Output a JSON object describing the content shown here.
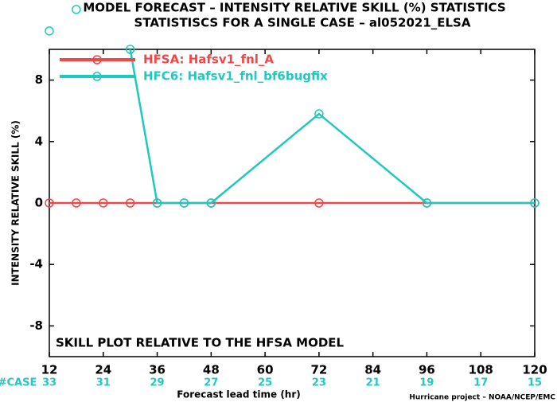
{
  "chart_data": {
    "type": "line",
    "title": "MODEL FORECAST – INTENSITY RELATIVE SKILL (%) STATISTICS",
    "subtitle": "STATISTISCS FOR A SINGLE CASE – al052021_ELSA",
    "x_label": "Forecast lead time (hr)",
    "y_label": "INTENSITY RELATIVE SKILL (%)",
    "annotation": "SKILL PLOT RELATIVE TO THE HFSA MODEL",
    "footer": "Hurricane project – NOAA/NCEP/EMC",
    "xlim": [
      12,
      120
    ],
    "xticks": [
      12,
      24,
      36,
      48,
      60,
      72,
      84,
      96,
      108,
      120
    ],
    "ylim": [
      -10,
      10
    ],
    "yticks": [
      -8,
      -4,
      0,
      4,
      8
    ],
    "cases": {
      "label": "#CASE",
      "values": [
        33,
        31,
        29,
        27,
        25,
        23,
        21,
        19,
        17,
        15
      ]
    },
    "legend": "upper left",
    "series": [
      {
        "name": "HFSA: Hafsv1_fnl_A",
        "color": "#f04848",
        "x": [
          12,
          18,
          24,
          30,
          36,
          42,
          48,
          72,
          96,
          120
        ],
        "values": [
          0,
          0,
          0,
          0,
          0,
          0,
          0,
          0,
          0,
          0
        ]
      },
      {
        "name": "HFC6: Hafsv1_fnl_bf6bugfix",
        "color": "#20c8c0",
        "x": [
          12,
          18,
          30,
          36,
          42,
          48,
          72,
          96,
          120
        ],
        "values": [
          11.2,
          12.6,
          10,
          0,
          0,
          0,
          5.8,
          0,
          0
        ]
      }
    ]
  }
}
